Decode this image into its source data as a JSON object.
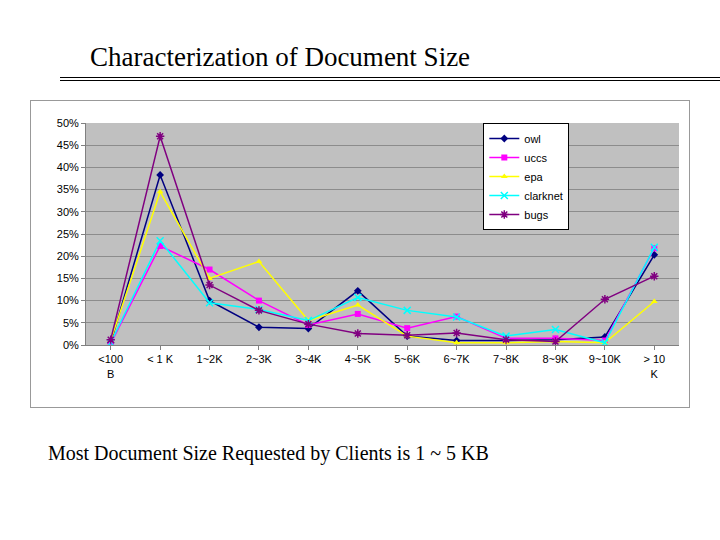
{
  "heading": "Characterization of Document Size",
  "caption": "Most Document Size Requested by Clients is 1 ~ 5 KB",
  "chart_data": {
    "type": "line",
    "categories": [
      "<100\nB",
      "< 1 K",
      "1~2K",
      "2~3K",
      "3~4K",
      "4~5K",
      "5~6K",
      "6~7K",
      "7~8K",
      "8~9K",
      "9~10K",
      "> 10\nK"
    ],
    "series": [
      {
        "name": "owl",
        "color": "#000080",
        "marker": "diamond",
        "values": [
          0.5,
          38.3,
          10,
          4,
          3.7,
          12.2,
          2,
          1,
          1,
          1.2,
          1.8,
          20.3
        ]
      },
      {
        "name": "uccs",
        "color": "#ff00ff",
        "marker": "square",
        "values": [
          0.3,
          22.3,
          17,
          10,
          4.5,
          7,
          3.8,
          6.4,
          1.5,
          1.5,
          1,
          21.8
        ]
      },
      {
        "name": "epa",
        "color": "#ffff00",
        "marker": "triangle",
        "values": [
          1,
          34.5,
          15,
          18.8,
          5.5,
          9,
          2,
          0.5,
          0.5,
          0.8,
          0.5,
          9.8
        ]
      },
      {
        "name": "clarknet",
        "color": "#00ffff",
        "marker": "x",
        "values": [
          0.5,
          23.5,
          9.5,
          8,
          5.5,
          10.7,
          7.8,
          6.3,
          2,
          3.5,
          0.5,
          22
        ]
      },
      {
        "name": "bugs",
        "color": "#800080",
        "marker": "star",
        "values": [
          1.2,
          47,
          13.5,
          7.8,
          4.7,
          2.6,
          2.2,
          2.7,
          1.2,
          0.8,
          10.3,
          15.5
        ]
      }
    ],
    "ylim": [
      0,
      50
    ],
    "yticks": [
      {
        "value": 0,
        "label": "0%"
      },
      {
        "value": 5,
        "label": "5%"
      },
      {
        "value": 10,
        "label": "10%"
      },
      {
        "value": 15,
        "label": "15%"
      },
      {
        "value": 20,
        "label": "20%"
      },
      {
        "value": 25,
        "label": "25%"
      },
      {
        "value": 30,
        "label": "30%"
      },
      {
        "value": 35,
        "label": "35%"
      },
      {
        "value": 40,
        "label": "40%"
      },
      {
        "value": 45,
        "label": "45%"
      },
      {
        "value": 50,
        "label": "50%"
      }
    ],
    "grid": true,
    "legend": "top right"
  }
}
